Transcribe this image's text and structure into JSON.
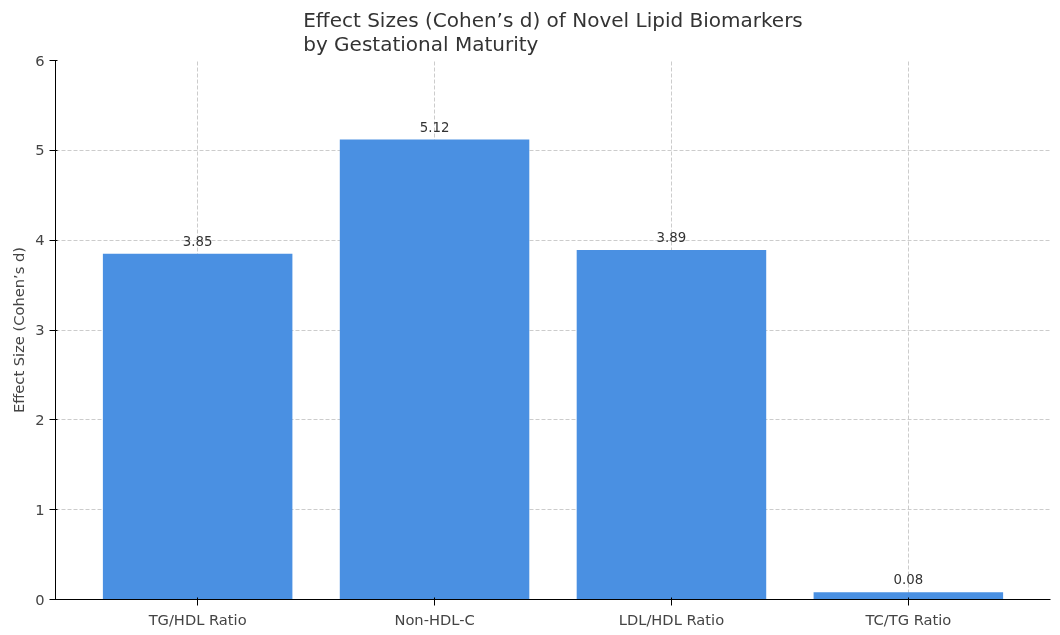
{
  "chart_data": {
    "type": "bar",
    "title": "Effect Sizes (Cohen’s d) of Novel Lipid Biomarkers\nby Gestational Maturity",
    "ylabel": "Effect Size (Cohen’s d)",
    "categories": [
      "TG/HDL Ratio",
      "Non-HDL-C",
      "LDL/HDL Ratio",
      "TC/TG Ratio"
    ],
    "values": [
      3.85,
      5.12,
      3.89,
      0.08
    ],
    "color": "#4a90e2",
    "ylim": [
      0,
      6
    ],
    "yticks": [
      0,
      1,
      2,
      3,
      4,
      5,
      6
    ],
    "grid": true,
    "data_labels": true
  }
}
